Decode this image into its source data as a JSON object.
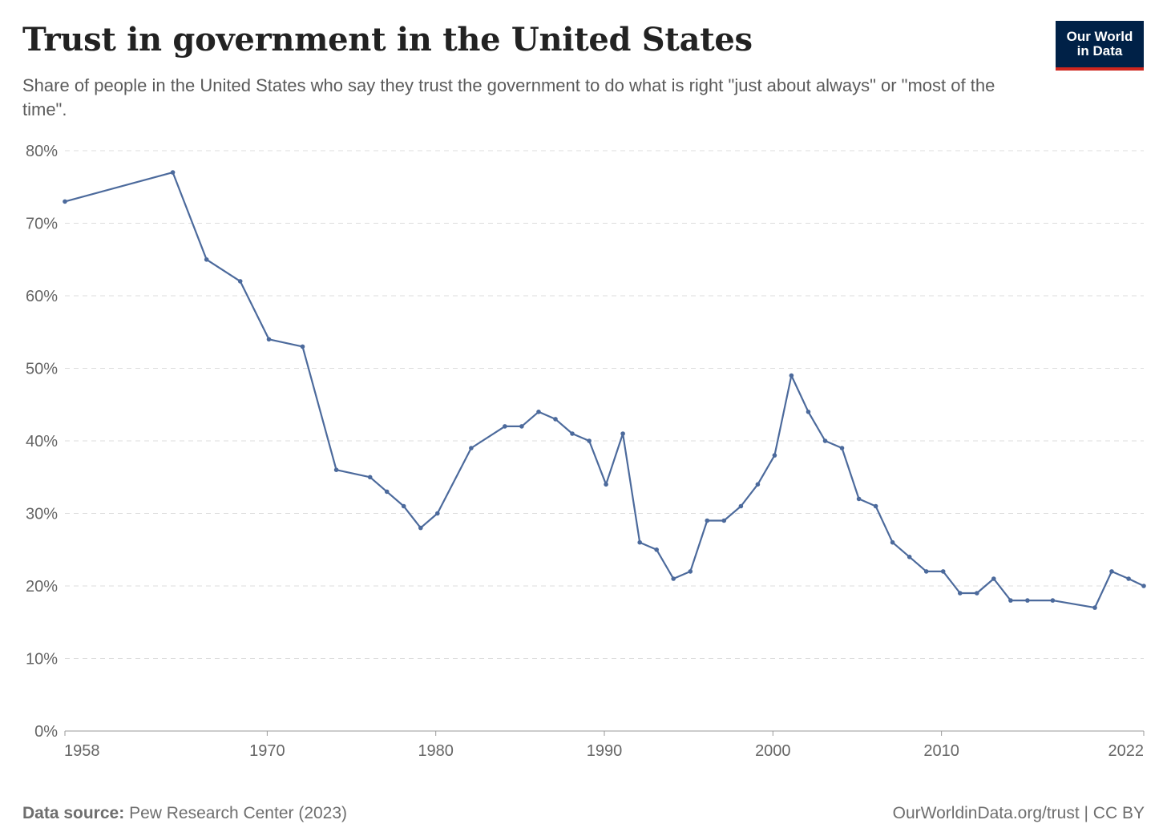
{
  "header": {
    "title": "Trust in government in the United States",
    "subtitle": "Share of people in the United States who say they trust the government to do what is right \"just about always\" or \"most of the time\".",
    "logo_line1": "Our World",
    "logo_line2": "in Data"
  },
  "footer": {
    "source_label": "Data source:",
    "source_text": "Pew Research Center (2023)",
    "link_text": "OurWorldinData.org/trust | CC BY"
  },
  "colors": {
    "line": "#4c6a9c",
    "grid": "#dddddd",
    "axis": "#999999",
    "logo_bg": "#002147",
    "logo_accent": "#ce261e"
  },
  "chart_data": {
    "type": "line",
    "title": "Trust in government in the United States",
    "xlabel": "",
    "ylabel": "",
    "xlim": [
      1958,
      2022
    ],
    "ylim": [
      0,
      80
    ],
    "grid": true,
    "x_ticks": [
      1958,
      1970,
      1980,
      1990,
      2000,
      2010,
      2022
    ],
    "y_ticks": [
      0,
      10,
      20,
      30,
      40,
      50,
      60,
      70,
      80
    ],
    "y_tick_labels": [
      "0%",
      "10%",
      "20%",
      "30%",
      "40%",
      "50%",
      "60%",
      "70%",
      "80%"
    ],
    "series": [
      {
        "x": [
          1958,
          1964.4,
          1966.4,
          1968.4,
          1970.1,
          1972.1,
          1974.1,
          1976.1,
          1977.1,
          1978.1,
          1979.1,
          1980.1,
          1982.1,
          1984.1,
          1985.1,
          1986.1,
          1987.1,
          1988.1,
          1989.1,
          1990.1,
          1991.1,
          1992.1,
          1993.1,
          1994.1,
          1995.1,
          1996.1,
          1997.1,
          1998.1,
          1999.1,
          2000.1,
          2001.1,
          2002.1,
          2003.1,
          2004.1,
          2005.1,
          2006.1,
          2007.1,
          2008.1,
          2009.1,
          2010.1,
          2011.1,
          2012.1,
          2013.1,
          2014.1,
          2015.1,
          2016.6,
          2019.1,
          2020.1,
          2021.1,
          2022
        ],
        "y": [
          73,
          77,
          65,
          62,
          54,
          53,
          36,
          35,
          33,
          31,
          28,
          30,
          39,
          42,
          42,
          44,
          43,
          41,
          40,
          34,
          41,
          26,
          25,
          21,
          22,
          29,
          29,
          31,
          34,
          38,
          49,
          44,
          40,
          39,
          32,
          31,
          26,
          24,
          22,
          22,
          19,
          19,
          21,
          18,
          18,
          18,
          17,
          22,
          21,
          20
        ]
      }
    ]
  }
}
